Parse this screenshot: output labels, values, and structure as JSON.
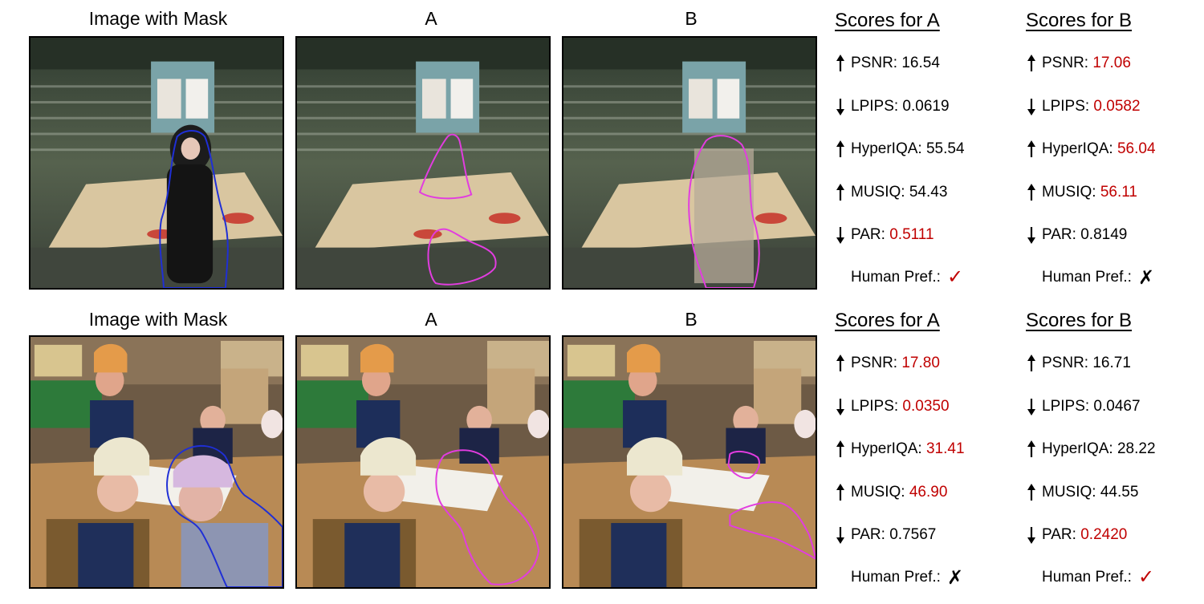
{
  "rows": [
    {
      "captions": {
        "mask": "Image with Mask",
        "a": "A",
        "b": "B"
      },
      "scores_a": {
        "title": "Scores for A",
        "metrics": [
          {
            "name": "PSNR: ",
            "value": "16.54",
            "direction": "up",
            "best": false
          },
          {
            "name": "LPIPS: ",
            "value": "0.0619",
            "direction": "down",
            "best": false
          },
          {
            "name": "HyperIQA: ",
            "value": "55.54",
            "direction": "up",
            "best": false
          },
          {
            "name": "MUSIQ: ",
            "value": "54.43",
            "direction": "up",
            "best": false
          },
          {
            "name": "PAR: ",
            "value": "0.5111",
            "direction": "down",
            "best": true
          }
        ],
        "human_pref_label": "Human Pref.:",
        "human_pref": "check"
      },
      "scores_b": {
        "title": "Scores for B",
        "metrics": [
          {
            "name": "PSNR: ",
            "value": "17.06",
            "direction": "up",
            "best": true
          },
          {
            "name": "LPIPS: ",
            "value": "0.0582",
            "direction": "down",
            "best": true
          },
          {
            "name": "HyperIQA: ",
            "value": "56.04",
            "direction": "up",
            "best": true
          },
          {
            "name": "MUSIQ: ",
            "value": "56.11",
            "direction": "up",
            "best": true
          },
          {
            "name": "PAR: ",
            "value": "0.8149",
            "direction": "down",
            "best": false
          }
        ],
        "human_pref_label": "Human Pref.:",
        "human_pref": "cross"
      }
    },
    {
      "captions": {
        "mask": "Image with Mask",
        "a": "A",
        "b": "B"
      },
      "scores_a": {
        "title": "Scores for A",
        "metrics": [
          {
            "name": "PSNR: ",
            "value": "17.80",
            "direction": "up",
            "best": true
          },
          {
            "name": "LPIPS: ",
            "value": "0.0350",
            "direction": "down",
            "best": true
          },
          {
            "name": "HyperIQA: ",
            "value": "31.41",
            "direction": "up",
            "best": true
          },
          {
            "name": "MUSIQ: ",
            "value": "46.90",
            "direction": "up",
            "best": true
          },
          {
            "name": "PAR: ",
            "value": "0.7567",
            "direction": "down",
            "best": false
          }
        ],
        "human_pref_label": "Human Pref.:",
        "human_pref": "cross"
      },
      "scores_b": {
        "title": "Scores for B",
        "metrics": [
          {
            "name": "PSNR: ",
            "value": "16.71",
            "direction": "up",
            "best": false
          },
          {
            "name": "LPIPS: ",
            "value": "0.0467",
            "direction": "down",
            "best": false
          },
          {
            "name": "HyperIQA: ",
            "value": "28.22",
            "direction": "up",
            "best": false
          },
          {
            "name": "MUSIQ: ",
            "value": "44.55",
            "direction": "up",
            "best": false
          },
          {
            "name": "PAR: ",
            "value": "0.2420",
            "direction": "down",
            "best": true
          }
        ],
        "human_pref_label": "Human Pref.:",
        "human_pref": "check"
      }
    }
  ],
  "marks": {
    "check": "✓",
    "cross": "✗"
  },
  "colors": {
    "best": "#c00000",
    "mask_outline": "#1f2fd6",
    "artifact_outline": "#e23ce0"
  }
}
